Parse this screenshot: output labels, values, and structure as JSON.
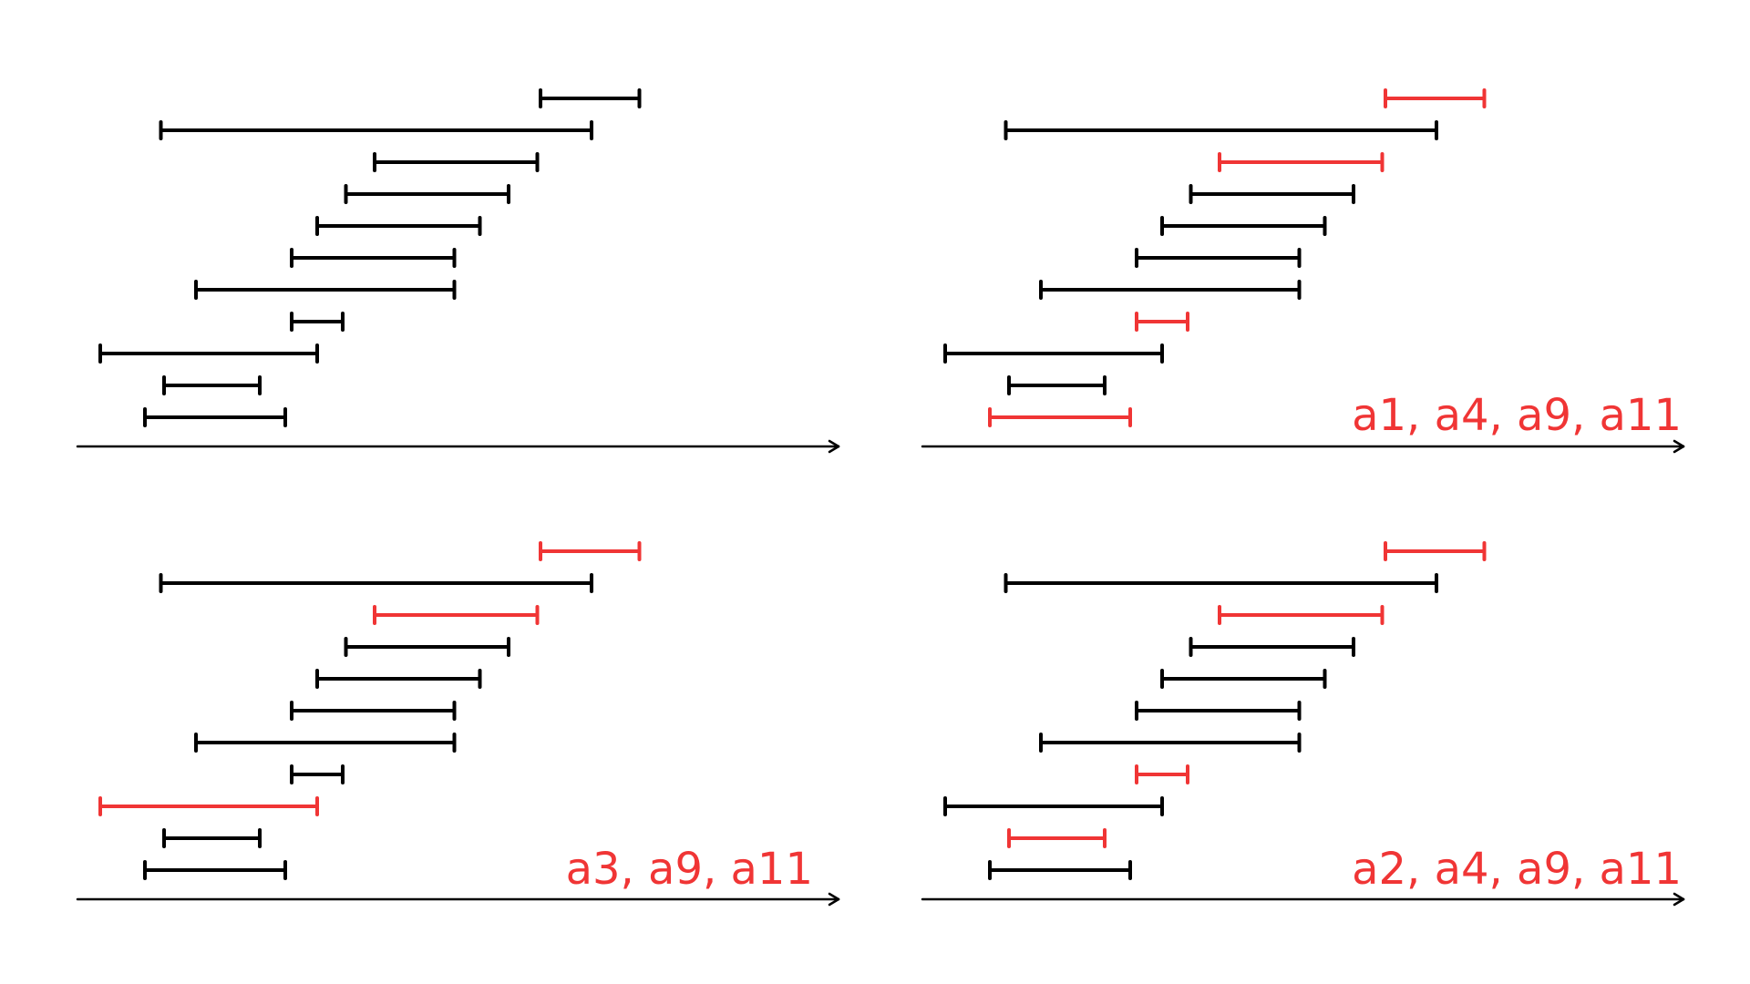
{
  "colors": {
    "interval": "#000000",
    "selected": "#f03535",
    "axis": "#000000",
    "label": "#f03535"
  },
  "intervals": [
    {
      "id": "a1",
      "start": 0.7,
      "end": 2.9
    },
    {
      "id": "a2",
      "start": 1.0,
      "end": 2.5
    },
    {
      "id": "a3",
      "start": 0.0,
      "end": 3.4
    },
    {
      "id": "a4",
      "start": 3.0,
      "end": 3.8
    },
    {
      "id": "a5",
      "start": 1.5,
      "end": 5.55
    },
    {
      "id": "a6",
      "start": 3.0,
      "end": 5.55
    },
    {
      "id": "a7",
      "start": 3.4,
      "end": 5.95
    },
    {
      "id": "a8",
      "start": 3.85,
      "end": 6.4
    },
    {
      "id": "a9",
      "start": 4.3,
      "end": 6.85
    },
    {
      "id": "a10",
      "start": 0.95,
      "end": 7.7
    },
    {
      "id": "a11",
      "start": 6.9,
      "end": 8.45
    }
  ],
  "panels": [
    {
      "label": "",
      "selected": []
    },
    {
      "label": "a1, a4, a9, a11",
      "selected": [
        "a1",
        "a4",
        "a9",
        "a11"
      ]
    },
    {
      "label": "a3, a9, a11",
      "selected": [
        "a3",
        "a9",
        "a11"
      ]
    },
    {
      "label": "a2, a4, a9, a11",
      "selected": [
        "a2",
        "a4",
        "a9",
        "a11"
      ]
    }
  ]
}
